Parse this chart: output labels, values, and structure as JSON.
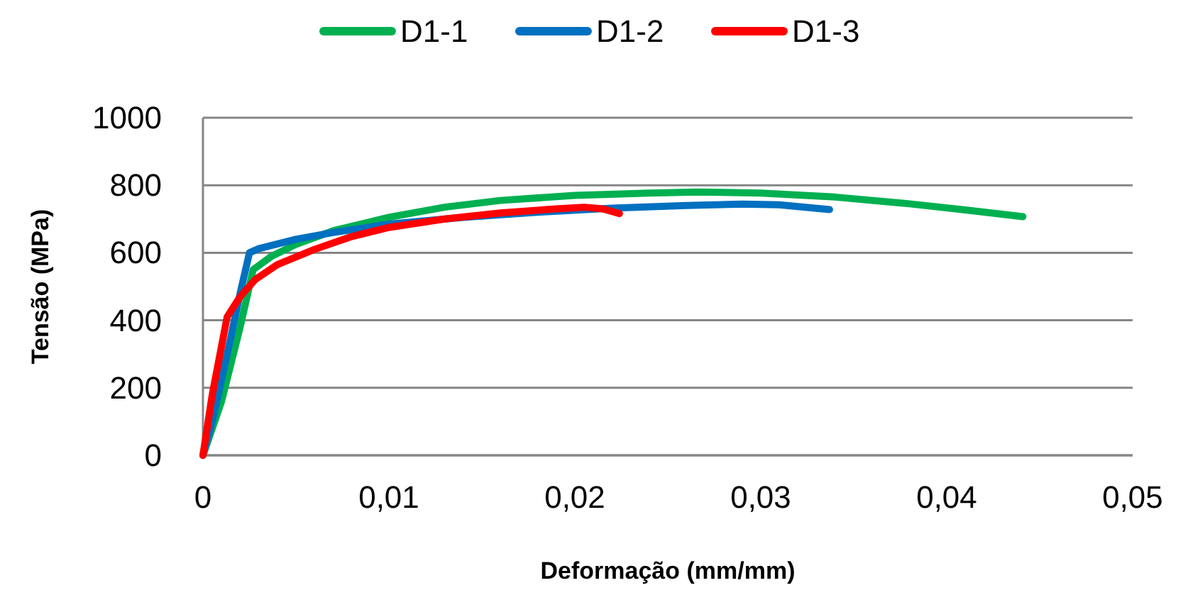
{
  "chart_data": {
    "type": "line",
    "xlabel": "Deformação (mm/mm)",
    "ylabel": "Tensão (MPa)",
    "xlim": [
      0,
      0.05
    ],
    "xticks": [
      {
        "value": 0,
        "label": "0"
      },
      {
        "value": 0.01,
        "label": "0,01"
      },
      {
        "value": 0.02,
        "label": "0,02"
      },
      {
        "value": 0.03,
        "label": "0,03"
      },
      {
        "value": 0.04,
        "label": "0,04"
      },
      {
        "value": 0.05,
        "label": "0,05"
      }
    ],
    "ylim": [
      0,
      1000
    ],
    "yticks": [
      0,
      200,
      400,
      600,
      800,
      1000
    ],
    "grid": "y",
    "legend": "top",
    "marker": "none",
    "line_style": "solid",
    "series": [
      {
        "name": "D1-1",
        "color": "#00b050",
        "x": [
          0,
          0.001,
          0.002,
          0.0027,
          0.0037,
          0.005,
          0.007,
          0.01,
          0.013,
          0.016,
          0.02,
          0.024,
          0.0266,
          0.03,
          0.034,
          0.038,
          0.041,
          0.0441
        ],
        "values": [
          0,
          160,
          380,
          550,
          590,
          625,
          665,
          705,
          735,
          755,
          770,
          777,
          780,
          777,
          765,
          745,
          727,
          707
        ]
      },
      {
        "name": "D1-2",
        "color": "#0070c0",
        "x": [
          0,
          0.0005,
          0.0015,
          0.002,
          0.0025,
          0.003,
          0.005,
          0.007,
          0.01,
          0.014,
          0.018,
          0.022,
          0.026,
          0.029,
          0.031,
          0.0337
        ],
        "values": [
          0,
          100,
          350,
          480,
          600,
          612,
          640,
          660,
          685,
          705,
          720,
          732,
          740,
          744,
          742,
          728
        ]
      },
      {
        "name": "D1-3",
        "color": "#ff0000",
        "x": [
          0,
          0.0005,
          0.0013,
          0.002,
          0.0028,
          0.004,
          0.006,
          0.008,
          0.01,
          0.013,
          0.016,
          0.019,
          0.0205,
          0.0215,
          0.0224
        ],
        "values": [
          0,
          180,
          410,
          470,
          520,
          565,
          610,
          648,
          675,
          700,
          718,
          730,
          735,
          730,
          716
        ]
      }
    ]
  }
}
